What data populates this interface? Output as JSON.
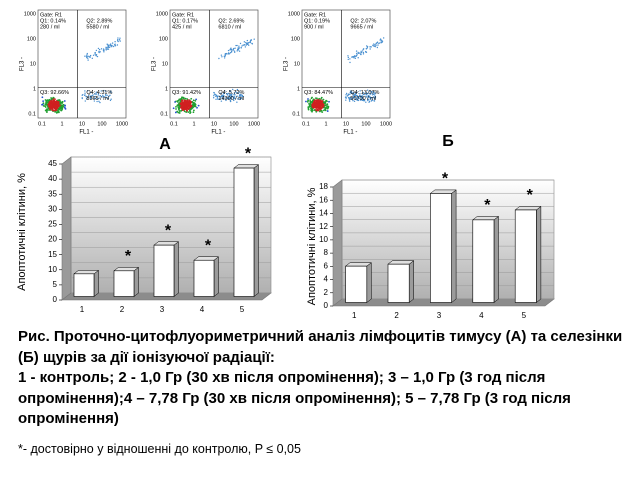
{
  "flow_plots": [
    {
      "gate": "Gate: R1",
      "q1": "Q1: 0.14%",
      "q1_count": "280 / ml",
      "q2": "Q2: 2.89%",
      "q2_count": "5580 / ml",
      "q3": "Q3: 92.66%",
      "q4": "Q4: 4.31%",
      "q4_count": "8365 / ml",
      "x_label": "FL1 -",
      "y_label": "FL3 -",
      "x_ticks": [
        "0.1",
        "1",
        "10",
        "100",
        "1000"
      ],
      "y_ticks": [
        "1000",
        "100",
        "10",
        "1",
        "0.1"
      ]
    },
    {
      "gate": "Gate: R1",
      "q1": "Q1: 0.17%",
      "q1_count": "425 / ml",
      "q2": "Q2: 2.69%",
      "q2_count": "6810 / ml",
      "q3": "Q3: 91.42%",
      "q4": "Q4: 5.72%",
      "q4_count": "14300 / ml",
      "x_label": "FL1 -",
      "y_label": "FL3 -",
      "x_ticks": [
        "0.1",
        "1",
        "10",
        "100",
        "1000"
      ],
      "y_ticks": [
        "1000",
        "100",
        "10",
        "1",
        "0.1"
      ]
    },
    {
      "gate": "Gate: R1",
      "q1": "Q1: 0.19%",
      "q1_count": "900 / ml",
      "q2": "Q2: 2.07%",
      "q2_count": "9665 / ml",
      "q3": "Q3: 84.47%",
      "q4": "Q4: 13.07%",
      "q4_count": "50700 / ml",
      "x_label": "FL1 -",
      "y_label": "FL3 -",
      "x_ticks": [
        "0.1",
        "1",
        "10",
        "100",
        "1000"
      ],
      "y_ticks": [
        "1000",
        "100",
        "10",
        "1",
        "0.1"
      ]
    }
  ],
  "chart_data": [
    {
      "type": "bar",
      "title": "А",
      "y_label": "Апоптотичні клітини, %",
      "categories": [
        "1",
        "2",
        "3",
        "4",
        "5"
      ],
      "values": [
        7.5,
        8.5,
        17,
        12,
        42.5
      ],
      "significance": [
        null,
        "*",
        "*",
        "*",
        "*"
      ],
      "color": "#ffffff",
      "ylim": [
        0,
        45
      ],
      "yticks": [
        0,
        5,
        10,
        15,
        20,
        25,
        30,
        35,
        40,
        45
      ],
      "grid": true
    },
    {
      "type": "bar",
      "title": "Б",
      "y_label": "Апоптотичні клітини, %",
      "categories": [
        "1",
        "2",
        "3",
        "4",
        "5"
      ],
      "values": [
        5.5,
        5.8,
        16.5,
        12.5,
        14
      ],
      "significance": [
        null,
        null,
        "*",
        "*",
        "*"
      ],
      "color": "#ffffff",
      "ylim": [
        0,
        18
      ],
      "yticks": [
        0,
        2,
        4,
        6,
        8,
        10,
        12,
        14,
        16,
        18
      ],
      "grid": true
    }
  ],
  "caption": {
    "title": "Рис.  Проточно-цитофлуориметричний аналіз лімфоцитів тимусу (А) та селезінки (Б)  щурів за дії іонізуючої радіації:",
    "legend": "1 - контроль; 2 - 1,0 Гр (30 хв після опромінення); 3 – 1,0 Гр  (3 год після опромінення);4 – 7,78 Гр (30 хв після опромінення); 5 – 7,78 Гр (3 год після опромінення)",
    "footnote": "*- достовірно у відношенні до контролю, P ≤ 0,05"
  }
}
